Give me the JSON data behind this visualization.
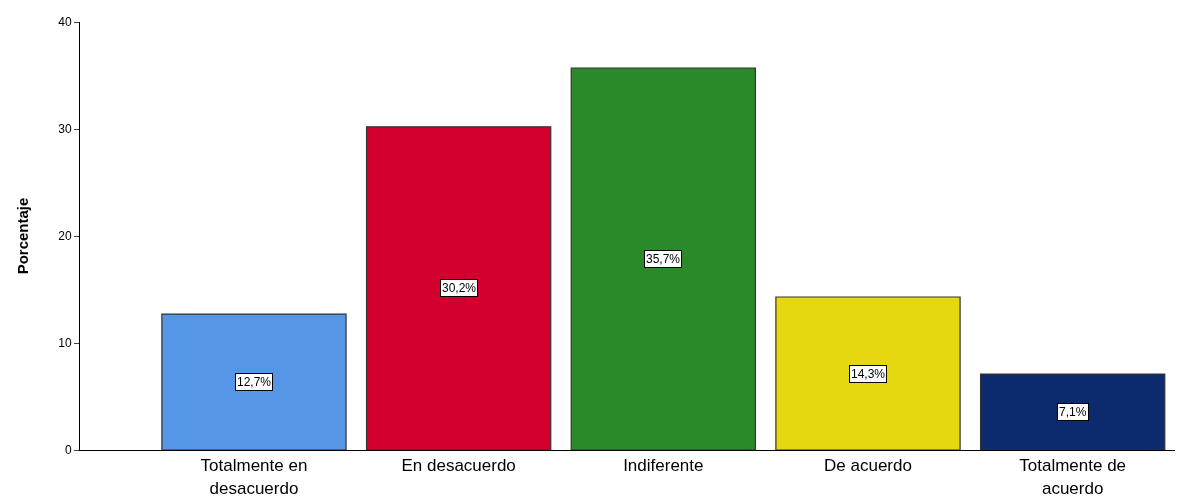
{
  "chart_data": {
    "type": "bar",
    "ylabel": "Porcentaje",
    "categories": [
      "Totalmente en desacuerdo",
      "En desacuerdo",
      "Indiferente",
      "De acuerdo",
      "Totalmente de acuerdo"
    ],
    "values": [
      12.7,
      30.2,
      35.7,
      14.3,
      7.1
    ],
    "value_labels": [
      "12,7%",
      "30,2%",
      "35,7%",
      "14,3%",
      "7,1%"
    ],
    "colors": [
      "#5596e6",
      "#d3002f",
      "#2a8a2a",
      "#e6d710",
      "#0c2a6e"
    ],
    "ylim": [
      0,
      40
    ],
    "yticks": [
      0,
      10,
      20,
      30,
      40
    ],
    "grid": false,
    "legend": false
  }
}
